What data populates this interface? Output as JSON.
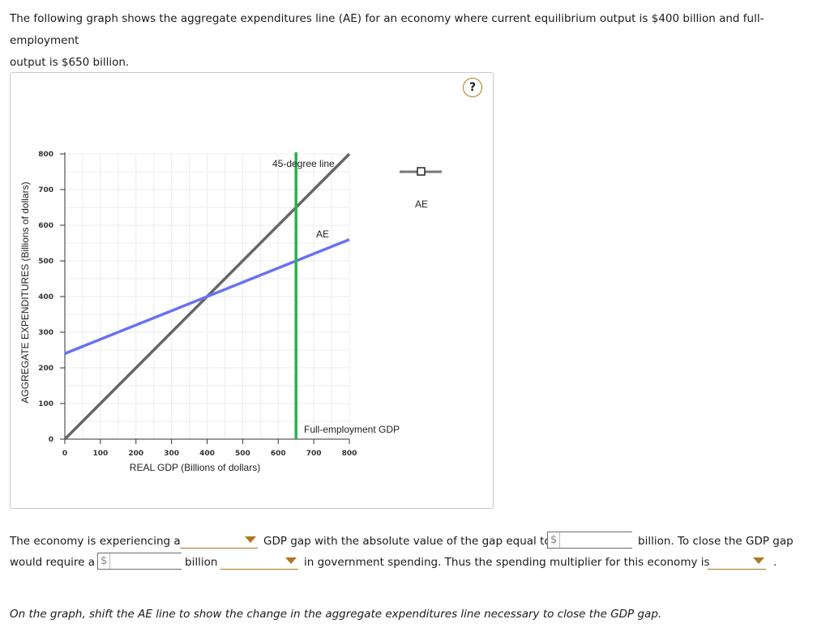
{
  "intro": {
    "line1": "The following graph shows the aggregate expenditures line (AE) for an economy where current equilibrium output is $400 billion and full-employment",
    "line2": "output is $650 billion."
  },
  "help_label": "?",
  "chart_data": {
    "type": "line",
    "xlabel": "REAL GDP (Billions of dollars)",
    "ylabel": "AGGREGATE EXPENDITURES (Billions of dollars)",
    "xlim": [
      0,
      800
    ],
    "ylim": [
      0,
      800
    ],
    "x_ticks": [
      0,
      100,
      200,
      300,
      400,
      500,
      600,
      700,
      800
    ],
    "y_ticks": [
      0,
      100,
      200,
      300,
      400,
      500,
      600,
      700,
      800
    ],
    "grid": true,
    "series": [
      {
        "name": "45-degree line",
        "color": "#666666",
        "points": [
          [
            0,
            0
          ],
          [
            800,
            800
          ]
        ]
      },
      {
        "name": "AE",
        "color": "#6a72f0",
        "points": [
          [
            0,
            240
          ],
          [
            800,
            560
          ]
        ]
      }
    ],
    "vertical_line": {
      "name": "Full-employment GDP",
      "x": 650,
      "color": "#27b34a"
    },
    "legend": {
      "label": "AE",
      "placement": "right"
    }
  },
  "question": {
    "p1": "The economy is experiencing a",
    "p2": "GDP gap with the absolute value of the gap equal to",
    "currency": "$",
    "p3": "billion. To close the GDP gap",
    "p4": "would require a",
    "p5": "billion",
    "p6": "in government spending. Thus the spending multiplier for this economy is",
    "p7": "."
  },
  "instruction": "On the graph, shift the AE line to show the change in the aggregate expenditures line necessary to close the GDP gap."
}
